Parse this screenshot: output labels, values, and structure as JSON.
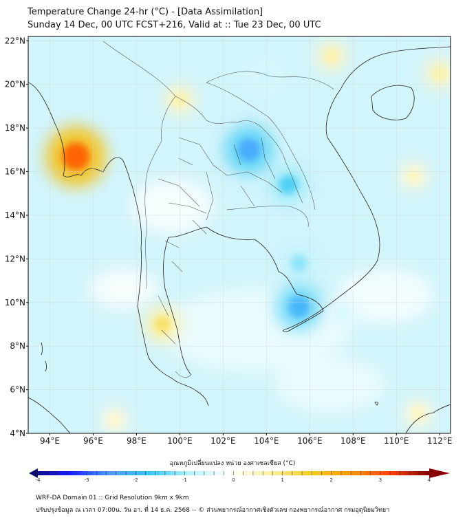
{
  "header": {
    "title_line1": "Temperature Change 24-hr (°C) - [Data Assimilation]",
    "title_line2": "Sunday 14 Dec, 00 UTC FCST+216, Valid at :: Tue 23 Dec, 00 UTC"
  },
  "map": {
    "lat_labels": [
      "22°N",
      "20°N",
      "18°N",
      "16°N",
      "14°N",
      "12°N",
      "10°N",
      "8°N",
      "6°N",
      "4°N"
    ],
    "lat_values": [
      22,
      20,
      18,
      16,
      14,
      12,
      10,
      8,
      6,
      4
    ],
    "lon_labels": [
      "94°E",
      "96°E",
      "98°E",
      "100°E",
      "102°E",
      "104°E",
      "106°E",
      "108°E",
      "110°E",
      "112°E"
    ],
    "lon_values": [
      94,
      96,
      98,
      100,
      102,
      104,
      106,
      108,
      110,
      112
    ],
    "lat_range": [
      4,
      22.2
    ],
    "lon_range": [
      93,
      112.5
    ]
  },
  "chart_data": {
    "type": "heatmap",
    "variable": "24-hr temperature change",
    "units": "°C",
    "anomalies": [
      {
        "name": "warm-myanmar-coast",
        "lat": 16.7,
        "lon": 95.2,
        "value": 3.0
      },
      {
        "name": "warm-south-thailand",
        "lat": 9.0,
        "lon": 99.2,
        "value": 1.2
      },
      {
        "name": "warm-north-thailand",
        "lat": 19.3,
        "lon": 100.0,
        "value": 0.8
      },
      {
        "name": "warm-gulf-tonkin",
        "lat": 21.3,
        "lon": 107.0,
        "value": 0.8
      },
      {
        "name": "warm-hainan-east",
        "lat": 20.5,
        "lon": 112.0,
        "value": 0.8
      },
      {
        "name": "warm-central-vietnam",
        "lat": 15.8,
        "lon": 110.8,
        "value": 0.6
      },
      {
        "name": "warm-southeast-sea",
        "lat": 4.9,
        "lon": 111.0,
        "value": 0.6
      },
      {
        "name": "warm-andaman",
        "lat": 4.6,
        "lon": 97.0,
        "value": 0.5
      },
      {
        "name": "cold-northeast-thailand",
        "lat": 17.0,
        "lon": 103.2,
        "value": -2.2
      },
      {
        "name": "cold-east-thailand",
        "lat": 15.4,
        "lon": 105.0,
        "value": -1.5
      },
      {
        "name": "cold-mekong-delta",
        "lat": 9.8,
        "lon": 105.5,
        "value": -2.0
      },
      {
        "name": "cold-cambodia",
        "lat": 11.8,
        "lon": 105.5,
        "value": -1.1
      },
      {
        "name": "cold-laos-north",
        "lat": 20.4,
        "lon": 104.0,
        "value": -0.6
      },
      {
        "name": "cold-south-sea",
        "lat": 9.5,
        "lon": 107.5,
        "value": -0.5
      }
    ]
  },
  "colorbar": {
    "label": "อุณหภูมิเปลี่ยนแปลง หน่วย องศาเซลเซียส (°C)",
    "ticks": [
      "-4",
      "-3",
      "-2",
      "-1",
      "0",
      "1",
      "2",
      "3",
      "4"
    ],
    "tick_values": [
      -4,
      -3,
      -2,
      -1,
      0,
      1,
      2,
      3,
      4
    ],
    "range": [
      -4,
      4
    ],
    "colors": [
      "#0a0a6e",
      "#1a1aff",
      "#4d9cff",
      "#33c6f2",
      "#b5f2fc",
      "#ffffff",
      "#fcf1a6",
      "#f2cf1f",
      "#ff9a00",
      "#ff4400",
      "#8a0000"
    ]
  },
  "footer": {
    "line1": "WRF-DA Domain 01 :: Grid Resolution 9km x 9km",
    "line2": "ปรับปรุงข้อมูล ณ เวลา 07:00น. วัน อา. ที่ 14 ธ.ค. 2568 -- © ส่วนพยากรณ์อากาศเชิงตัวเลข กองพยากรณ์อากาศ กรมอุตุนิยมวิทยา"
  }
}
